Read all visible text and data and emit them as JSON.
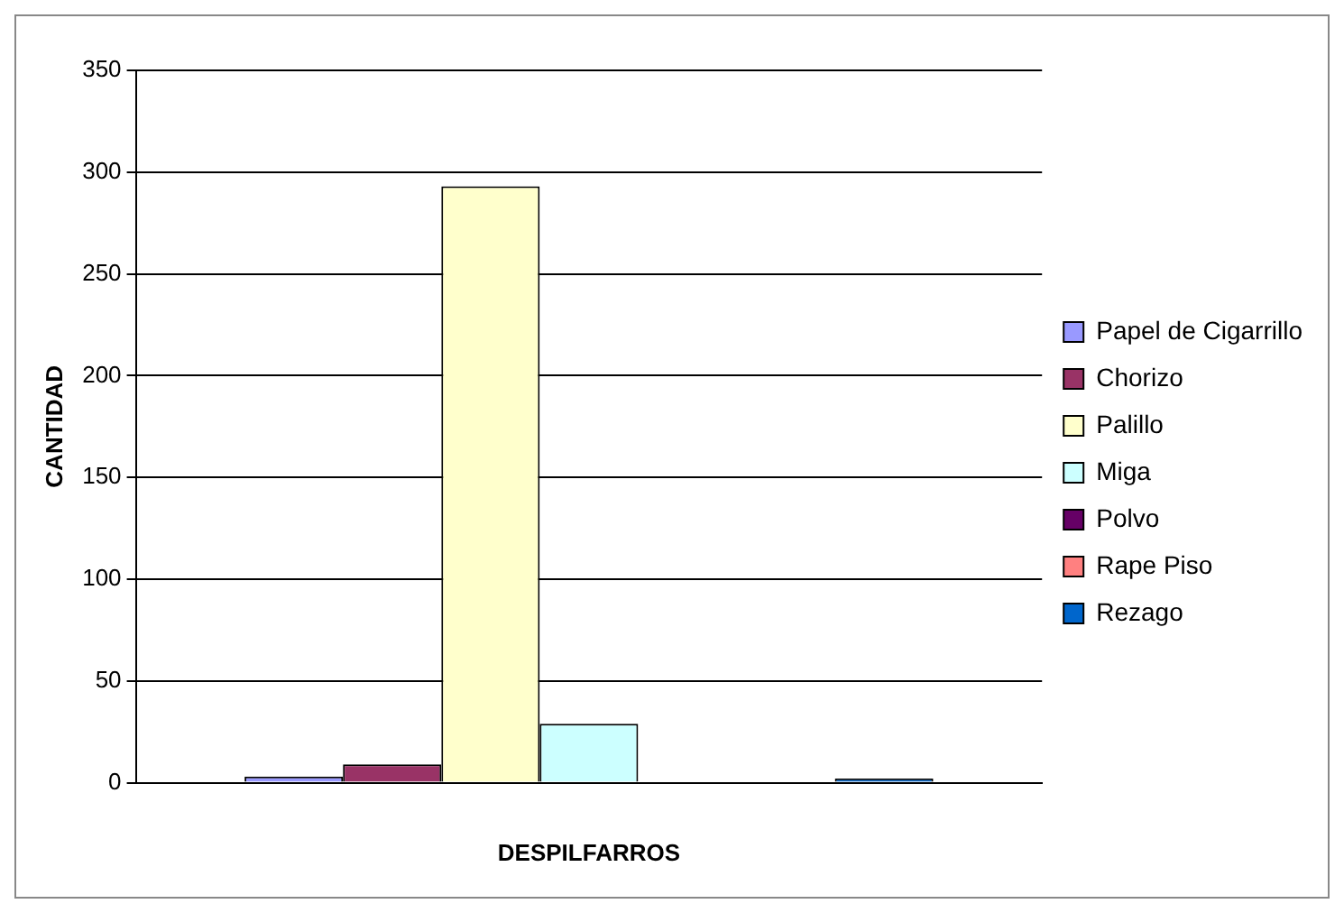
{
  "chart_data": {
    "type": "bar",
    "xlabel": "DESPILFARROS",
    "ylabel": "CANTIDAD",
    "categories": [
      null
    ],
    "series": [
      {
        "name": "Papel de Cigarrillo",
        "color": "#9999ff",
        "values": [
          3
        ]
      },
      {
        "name": "Chorizo",
        "color": "#993366",
        "values": [
          9
        ]
      },
      {
        "name": "Palillo",
        "color": "#ffffcc",
        "values": [
          293
        ]
      },
      {
        "name": "Miga",
        "color": "#ccffff",
        "values": [
          29
        ]
      },
      {
        "name": "Polvo",
        "color": "#660066",
        "values": [
          0
        ]
      },
      {
        "name": "Rape Piso",
        "color": "#ff8080",
        "values": [
          0
        ]
      },
      {
        "name": "Rezago",
        "color": "#0066cc",
        "values": [
          2
        ]
      }
    ],
    "ylim": [
      0,
      350
    ],
    "yticks": [
      0,
      50,
      100,
      150,
      200,
      250,
      300,
      350
    ],
    "grid": "y",
    "legend": "right"
  }
}
